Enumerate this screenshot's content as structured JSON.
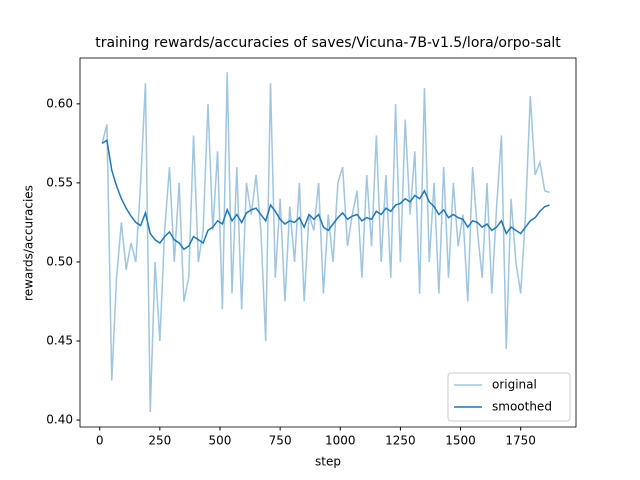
{
  "chart_data": {
    "type": "line",
    "title": "training rewards/accuracies of saves/Vicuna-7B-v1.5/lora/orpo-salt",
    "x_label": "step",
    "y_label": "rewards/accuracies",
    "x": [
      10,
      30,
      50,
      70,
      90,
      110,
      130,
      150,
      170,
      190,
      210,
      230,
      250,
      270,
      290,
      310,
      330,
      350,
      370,
      390,
      410,
      430,
      450,
      470,
      490,
      510,
      530,
      550,
      570,
      590,
      610,
      630,
      650,
      670,
      690,
      710,
      730,
      750,
      770,
      790,
      810,
      830,
      850,
      870,
      890,
      910,
      930,
      950,
      970,
      990,
      1010,
      1030,
      1050,
      1070,
      1090,
      1110,
      1130,
      1150,
      1170,
      1190,
      1210,
      1230,
      1250,
      1270,
      1290,
      1310,
      1330,
      1350,
      1370,
      1390,
      1410,
      1430,
      1450,
      1470,
      1490,
      1510,
      1530,
      1550,
      1570,
      1590,
      1610,
      1630,
      1650,
      1670,
      1690,
      1710,
      1730,
      1750,
      1770,
      1790,
      1810,
      1830,
      1850,
      1870
    ],
    "series": [
      {
        "name": "original",
        "color": "#9fc5e0",
        "values": [
          0.575,
          0.587,
          0.425,
          0.49,
          0.525,
          0.495,
          0.512,
          0.5,
          0.55,
          0.613,
          0.405,
          0.5,
          0.45,
          0.52,
          0.56,
          0.5,
          0.55,
          0.475,
          0.49,
          0.58,
          0.5,
          0.52,
          0.6,
          0.52,
          0.57,
          0.47,
          0.62,
          0.48,
          0.56,
          0.47,
          0.55,
          0.53,
          0.555,
          0.52,
          0.45,
          0.613,
          0.49,
          0.54,
          0.475,
          0.535,
          0.5,
          0.55,
          0.475,
          0.53,
          0.52,
          0.55,
          0.48,
          0.53,
          0.5,
          0.55,
          0.56,
          0.51,
          0.53,
          0.545,
          0.49,
          0.555,
          0.51,
          0.58,
          0.5,
          0.555,
          0.49,
          0.6,
          0.5,
          0.59,
          0.53,
          0.57,
          0.48,
          0.61,
          0.5,
          0.55,
          0.48,
          0.56,
          0.49,
          0.55,
          0.51,
          0.53,
          0.475,
          0.56,
          0.52,
          0.49,
          0.55,
          0.48,
          0.535,
          0.58,
          0.445,
          0.54,
          0.5,
          0.48,
          0.53,
          0.605,
          0.555,
          0.563,
          0.545,
          0.544
        ]
      },
      {
        "name": "smoothed",
        "color": "#1f77b4",
        "values": [
          0.575,
          0.577,
          0.558,
          0.548,
          0.54,
          0.534,
          0.529,
          0.525,
          0.523,
          0.531,
          0.518,
          0.514,
          0.512,
          0.516,
          0.519,
          0.514,
          0.512,
          0.508,
          0.51,
          0.516,
          0.514,
          0.512,
          0.52,
          0.522,
          0.526,
          0.524,
          0.533,
          0.526,
          0.53,
          0.525,
          0.531,
          0.533,
          0.534,
          0.53,
          0.526,
          0.536,
          0.532,
          0.527,
          0.524,
          0.526,
          0.525,
          0.528,
          0.522,
          0.53,
          0.527,
          0.53,
          0.522,
          0.52,
          0.524,
          0.528,
          0.531,
          0.527,
          0.529,
          0.53,
          0.526,
          0.528,
          0.527,
          0.532,
          0.53,
          0.534,
          0.532,
          0.536,
          0.537,
          0.54,
          0.538,
          0.542,
          0.54,
          0.545,
          0.538,
          0.535,
          0.53,
          0.533,
          0.528,
          0.53,
          0.528,
          0.527,
          0.522,
          0.526,
          0.525,
          0.522,
          0.524,
          0.52,
          0.522,
          0.526,
          0.518,
          0.522,
          0.52,
          0.518,
          0.522,
          0.526,
          0.528,
          0.532,
          0.535,
          0.536
        ]
      }
    ],
    "xlim": [
      -82,
      1980
    ],
    "xticks": [
      0,
      250,
      500,
      750,
      1000,
      1250,
      1500,
      1750
    ],
    "ylim": [
      0.3956,
      0.629
    ],
    "yticks": [
      {
        "value": 0.4,
        "label": "0.40"
      },
      0.45,
      {
        "value": 0.5,
        "label": "0.50"
      },
      0.55,
      {
        "value": 0.6,
        "label": "0.60"
      }
    ],
    "legend": "lower right",
    "grid": false
  }
}
